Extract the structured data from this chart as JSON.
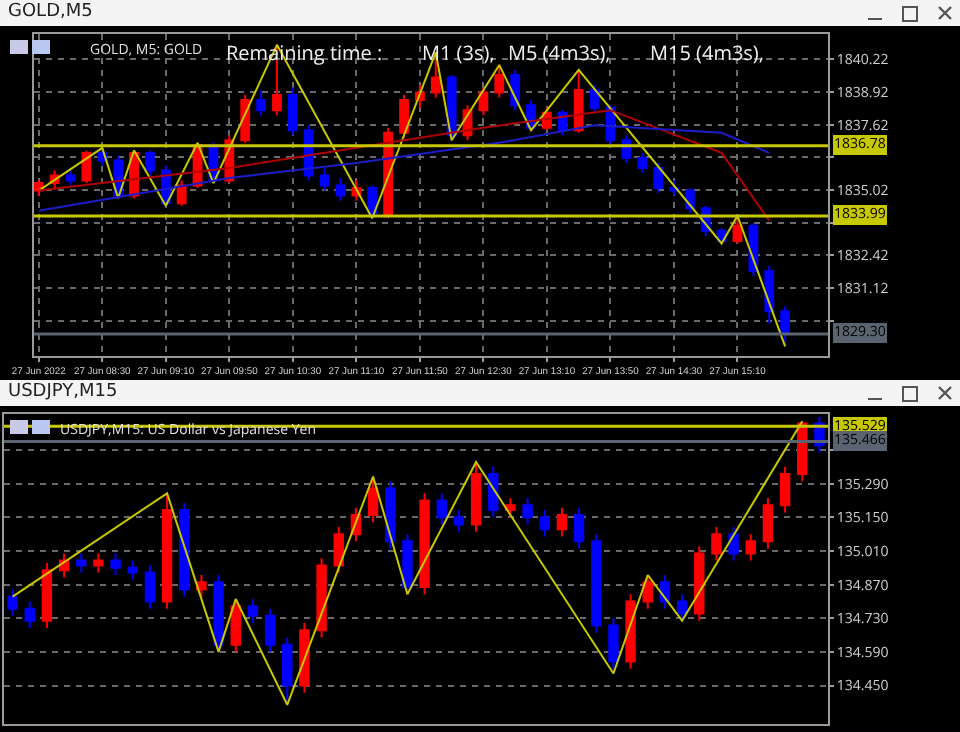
{
  "chart_data": [
    {
      "type": "candlestick",
      "title": "GOLD,M5",
      "subtitle": "GOLD, M5: GOLD",
      "annotations": [
        "Remaining time :",
        "M1 (3s),",
        "M5 (4m3s),",
        "M15 (4m3s),"
      ],
      "x": [
        "2022-06-27T07:50",
        "2022-06-27T08:00",
        "2022-06-27T08:10",
        "2022-06-27T08:20",
        "2022-06-27T08:30",
        "2022-06-27T08:40",
        "2022-06-27T08:50",
        "2022-06-27T09:00",
        "2022-06-27T09:10",
        "2022-06-27T09:20",
        "2022-06-27T09:30",
        "2022-06-27T09:40",
        "2022-06-27T09:50",
        "2022-06-27T10:00",
        "2022-06-27T10:10",
        "2022-06-27T10:20",
        "2022-06-27T10:30",
        "2022-06-27T10:40",
        "2022-06-27T10:50",
        "2022-06-27T11:00",
        "2022-06-27T11:10",
        "2022-06-27T11:20",
        "2022-06-27T11:30",
        "2022-06-27T11:40",
        "2022-06-27T11:50",
        "2022-06-27T12:00",
        "2022-06-27T12:10",
        "2022-06-27T12:20",
        "2022-06-27T12:30",
        "2022-06-27T12:40",
        "2022-06-27T12:50",
        "2022-06-27T13:00",
        "2022-06-27T13:10",
        "2022-06-27T13:20",
        "2022-06-27T13:30",
        "2022-06-27T13:40",
        "2022-06-27T13:50",
        "2022-06-27T14:00",
        "2022-06-27T14:10",
        "2022-06-27T14:20",
        "2022-06-27T14:30",
        "2022-06-27T14:40",
        "2022-06-27T14:50",
        "2022-06-27T15:00",
        "2022-06-27T15:10",
        "2022-06-27T15:20",
        "2022-06-27T15:30",
        "2022-06-27T15:40"
      ],
      "colors": [
        "#ff0000",
        "#ff0000",
        "#0000ff",
        "#ff0000",
        "#0000ff",
        "#0000ff",
        "#ff0000",
        "#0000ff",
        "#0000ff",
        "#ff0000",
        "#ff0000",
        "#0000ff",
        "#ff0000",
        "#ff0000",
        "#0000ff",
        "#ff0000",
        "#0000ff",
        "#0000ff",
        "#0000ff",
        "#0000ff",
        "#ff0000",
        "#0000ff",
        "#ff0000",
        "#ff0000",
        "#ff0000",
        "#ff0000",
        "#0000ff",
        "#ff0000",
        "#ff0000",
        "#ff0000",
        "#0000ff",
        "#0000ff",
        "#ff0000",
        "#0000ff",
        "#ff0000",
        "#0000ff",
        "#0000ff",
        "#0000ff",
        "#0000ff",
        "#0000ff",
        "#0000ff",
        "#0000ff",
        "#0000ff",
        "#0000ff",
        "#ff0000",
        "#0000ff",
        "#0000ff",
        "#0000ff"
      ],
      "ohlc": [
        [
          1835.0,
          1835.4,
          1834.8,
          1835.3
        ],
        [
          1835.3,
          1835.8,
          1835.1,
          1835.6
        ],
        [
          1835.6,
          1835.9,
          1835.2,
          1835.4
        ],
        [
          1835.4,
          1836.6,
          1835.3,
          1836.5
        ],
        [
          1836.5,
          1836.7,
          1836.0,
          1836.2
        ],
        [
          1836.2,
          1836.4,
          1834.7,
          1834.8
        ],
        [
          1834.8,
          1836.6,
          1834.7,
          1836.5
        ],
        [
          1836.5,
          1836.6,
          1835.6,
          1835.8
        ],
        [
          1835.8,
          1836.0,
          1834.4,
          1834.5
        ],
        [
          1834.5,
          1835.4,
          1834.4,
          1835.2
        ],
        [
          1835.2,
          1836.9,
          1835.1,
          1836.8
        ],
        [
          1836.8,
          1836.9,
          1835.3,
          1835.4
        ],
        [
          1835.4,
          1837.2,
          1835.3,
          1837.0
        ],
        [
          1837.0,
          1838.8,
          1836.9,
          1838.6
        ],
        [
          1838.6,
          1839.0,
          1838.0,
          1838.2
        ],
        [
          1838.2,
          1840.8,
          1838.0,
          1838.8
        ],
        [
          1838.8,
          1839.1,
          1837.2,
          1837.4
        ],
        [
          1837.4,
          1837.6,
          1835.4,
          1835.6
        ],
        [
          1835.6,
          1835.9,
          1835.0,
          1835.2
        ],
        [
          1835.2,
          1835.5,
          1834.6,
          1834.8
        ],
        [
          1834.8,
          1835.4,
          1834.6,
          1835.1
        ],
        [
          1835.1,
          1835.2,
          1833.9,
          1834.0
        ],
        [
          1834.0,
          1837.5,
          1833.9,
          1837.3
        ],
        [
          1837.3,
          1838.8,
          1837.1,
          1838.6
        ],
        [
          1838.6,
          1839.2,
          1838.3,
          1838.9
        ],
        [
          1838.9,
          1840.5,
          1838.7,
          1839.5
        ],
        [
          1839.5,
          1839.6,
          1837.0,
          1837.2
        ],
        [
          1837.2,
          1838.4,
          1837.0,
          1838.2
        ],
        [
          1838.2,
          1839.1,
          1838.0,
          1838.9
        ],
        [
          1838.9,
          1840.0,
          1838.7,
          1839.6
        ],
        [
          1839.6,
          1839.8,
          1838.2,
          1838.4
        ],
        [
          1838.4,
          1838.6,
          1837.4,
          1837.5
        ],
        [
          1837.5,
          1838.3,
          1837.4,
          1838.1
        ],
        [
          1838.1,
          1838.2,
          1837.2,
          1837.4
        ],
        [
          1837.4,
          1839.8,
          1837.3,
          1839.0
        ],
        [
          1839.0,
          1839.2,
          1838.1,
          1838.3
        ],
        [
          1838.3,
          1838.4,
          1836.8,
          1837.0
        ],
        [
          1837.0,
          1837.2,
          1836.1,
          1836.3
        ],
        [
          1836.3,
          1836.5,
          1835.7,
          1835.9
        ],
        [
          1835.9,
          1836.1,
          1834.9,
          1835.1
        ],
        [
          1835.1,
          1835.4,
          1834.8,
          1835.0
        ],
        [
          1835.0,
          1835.1,
          1834.1,
          1834.3
        ],
        [
          1834.3,
          1834.4,
          1833.2,
          1833.4
        ],
        [
          1833.4,
          1833.5,
          1832.9,
          1833.0
        ],
        [
          1833.0,
          1834.0,
          1832.9,
          1833.6
        ],
        [
          1833.6,
          1833.7,
          1831.6,
          1831.8
        ],
        [
          1831.8,
          1832.0,
          1829.7,
          1830.2
        ],
        [
          1830.2,
          1830.4,
          1828.8,
          1829.3
        ]
      ],
      "series": [
        {
          "type": "line",
          "color": "#c8c800",
          "x": [
            "2022-06-27T07:50",
            "2022-06-27T08:30",
            "2022-06-27T08:40",
            "2022-06-27T08:50",
            "2022-06-27T09:10",
            "2022-06-27T09:30",
            "2022-06-27T09:40",
            "2022-06-27T10:20",
            "2022-06-27T11:20",
            "2022-06-27T12:00",
            "2022-06-27T12:10",
            "2022-06-27T12:40",
            "2022-06-27T13:00",
            "2022-06-27T13:30",
            "2022-06-27T15:00",
            "2022-06-27T15:10",
            "2022-06-27T15:40"
          ],
          "values": [
            1835.0,
            1836.7,
            1834.7,
            1836.6,
            1834.4,
            1836.9,
            1835.3,
            1840.8,
            1833.9,
            1840.5,
            1837.0,
            1840.0,
            1837.4,
            1839.8,
            1832.9,
            1834.0,
            1828.8
          ]
        },
        {
          "type": "line",
          "color": "#b00000",
          "x": [
            "2022-06-27T07:50",
            "2022-06-27T09:50",
            "2022-06-27T11:10",
            "2022-06-27T12:30",
            "2022-06-27T13:50",
            "2022-06-27T15:00",
            "2022-06-27T15:30"
          ],
          "values": [
            1835.0,
            1835.9,
            1836.7,
            1837.5,
            1838.2,
            1836.5,
            1833.8
          ]
        },
        {
          "type": "line",
          "color": "#1c1cc8",
          "x": [
            "2022-06-27T07:50",
            "2022-06-27T09:50",
            "2022-06-27T11:10",
            "2022-06-27T12:40",
            "2022-06-27T13:40",
            "2022-06-27T15:00",
            "2022-06-27T15:30"
          ],
          "values": [
            1834.2,
            1835.5,
            1836.1,
            1836.9,
            1837.6,
            1837.3,
            1836.5
          ]
        }
      ],
      "xlim": [
        "2022-06-27T07:47",
        "2022-06-27T16:07"
      ],
      "xticks": [
        {
          "value": "2022-06-27T07:50",
          "label": "27 Jun 2022"
        },
        {
          "value": "2022-06-27T08:30",
          "label": "27 Jun 08:30"
        },
        {
          "value": "2022-06-27T09:10",
          "label": "27 Jun 09:10"
        },
        {
          "value": "2022-06-27T09:50",
          "label": "27 Jun 09:50"
        },
        {
          "value": "2022-06-27T10:30",
          "label": "27 Jun 10:30"
        },
        {
          "value": "2022-06-27T11:10",
          "label": "27 Jun 11:10"
        },
        {
          "value": "2022-06-27T11:50",
          "label": "27 Jun 11:50"
        },
        {
          "value": "2022-06-27T12:30",
          "label": "27 Jun 12:30"
        },
        {
          "value": "2022-06-27T13:10",
          "label": "27 Jun 13:10"
        },
        {
          "value": "2022-06-27T13:50",
          "label": "27 Jun 13:50"
        },
        {
          "value": "2022-06-27T14:30",
          "label": "27 Jun 14:30"
        },
        {
          "value": "2022-06-27T15:10",
          "label": "27 Jun 15:10"
        }
      ],
      "ylim": [
        1828.42,
        1841.23
      ],
      "yticks": [
        1840.22,
        1838.92,
        1837.62,
        {
          "value": 1836.32,
          "label": null
        },
        1835.02,
        {
          "value": 1833.72,
          "label": null
        },
        1832.42,
        1831.12,
        {
          "value": 1829.82,
          "label": null
        }
      ],
      "grid": true,
      "marker": "none",
      "line_style": "solid",
      "ref_lines": [
        {
          "axis": "y",
          "value": 1836.78,
          "label": "1836.78",
          "color": "#c8c800"
        },
        {
          "axis": "y",
          "value": 1833.99,
          "label": "1833.99",
          "color": "#c8c800"
        },
        {
          "axis": "y",
          "value": 1829.3,
          "label": "1829.30",
          "color": "#5a6470"
        }
      ]
    },
    {
      "type": "candlestick",
      "title": "USDJPY,M15",
      "subtitle": "USDJPY,M15: US Dollar vs Japanese Yen",
      "categories": [
        null,
        null,
        null,
        null,
        null,
        null,
        null,
        null,
        null,
        null,
        null,
        null,
        null,
        null,
        null,
        null,
        null,
        null,
        null,
        null,
        null,
        null,
        null,
        null,
        null,
        null,
        null,
        null,
        null,
        null,
        null,
        null,
        null,
        null,
        null,
        null,
        null,
        null,
        null,
        null,
        null,
        null,
        null,
        null,
        null,
        null,
        null,
        null
      ],
      "colors": [
        "#0000ff",
        "#0000ff",
        "#ff0000",
        "#ff0000",
        "#0000ff",
        "#ff0000",
        "#0000ff",
        "#0000ff",
        "#0000ff",
        "#ff0000",
        "#0000ff",
        "#ff0000",
        "#0000ff",
        "#ff0000",
        "#0000ff",
        "#0000ff",
        "#0000ff",
        "#ff0000",
        "#ff0000",
        "#ff0000",
        "#ff0000",
        "#ff0000",
        "#0000ff",
        "#0000ff",
        "#ff0000",
        "#0000ff",
        "#0000ff",
        "#ff0000",
        "#0000ff",
        "#ff0000",
        "#0000ff",
        "#0000ff",
        "#ff0000",
        "#0000ff",
        "#0000ff",
        "#0000ff",
        "#ff0000",
        "#ff0000",
        "#0000ff",
        "#0000ff",
        "#ff0000",
        "#ff0000",
        "#0000ff",
        "#ff0000",
        "#ff0000",
        "#ff0000",
        "#ff0000",
        "#0000ff"
      ],
      "ohlc": [
        [
          134.82,
          134.85,
          134.74,
          134.77
        ],
        [
          134.77,
          134.8,
          134.69,
          134.72
        ],
        [
          134.72,
          134.96,
          134.69,
          134.93
        ],
        [
          134.93,
          135.0,
          134.9,
          134.97
        ],
        [
          134.97,
          135.0,
          134.92,
          134.95
        ],
        [
          134.95,
          135.0,
          134.92,
          134.97
        ],
        [
          134.97,
          135.0,
          134.91,
          134.94
        ],
        [
          134.94,
          134.97,
          134.89,
          134.92
        ],
        [
          134.92,
          134.95,
          134.77,
          134.8
        ],
        [
          134.8,
          135.25,
          134.77,
          135.18
        ],
        [
          135.18,
          135.21,
          134.82,
          134.85
        ],
        [
          134.85,
          134.91,
          134.82,
          134.88
        ],
        [
          134.88,
          134.91,
          134.59,
          134.62
        ],
        [
          134.62,
          134.81,
          134.59,
          134.78
        ],
        [
          134.78,
          134.81,
          134.71,
          134.74
        ],
        [
          134.74,
          134.77,
          134.59,
          134.62
        ],
        [
          134.62,
          134.65,
          134.37,
          134.45
        ],
        [
          134.45,
          134.71,
          134.42,
          134.68
        ],
        [
          134.68,
          134.98,
          134.65,
          134.95
        ],
        [
          134.95,
          135.11,
          134.92,
          135.08
        ],
        [
          135.08,
          135.19,
          135.05,
          135.16
        ],
        [
          135.16,
          135.32,
          135.13,
          135.27
        ],
        [
          135.27,
          135.3,
          135.02,
          135.05
        ],
        [
          135.05,
          135.08,
          134.83,
          134.86
        ],
        [
          134.86,
          135.25,
          134.83,
          135.22
        ],
        [
          135.22,
          135.25,
          135.12,
          135.15
        ],
        [
          135.15,
          135.18,
          135.09,
          135.12
        ],
        [
          135.12,
          135.38,
          135.09,
          135.33
        ],
        [
          135.33,
          135.36,
          135.15,
          135.18
        ],
        [
          135.18,
          135.23,
          135.15,
          135.2
        ],
        [
          135.2,
          135.23,
          135.12,
          135.15
        ],
        [
          135.15,
          135.18,
          135.07,
          135.1
        ],
        [
          135.1,
          135.19,
          135.07,
          135.16
        ],
        [
          135.16,
          135.19,
          135.02,
          135.05
        ],
        [
          135.05,
          135.08,
          134.67,
          134.7
        ],
        [
          134.7,
          134.73,
          134.5,
          134.55
        ],
        [
          134.55,
          134.83,
          134.52,
          134.8
        ],
        [
          134.8,
          134.91,
          134.77,
          134.88
        ],
        [
          134.88,
          134.91,
          134.77,
          134.8
        ],
        [
          134.8,
          134.83,
          134.72,
          134.75
        ],
        [
          134.75,
          135.03,
          134.72,
          135.0
        ],
        [
          135.0,
          135.11,
          134.97,
          135.08
        ],
        [
          135.08,
          135.11,
          134.97,
          135.0
        ],
        [
          135.0,
          135.08,
          134.97,
          135.05
        ],
        [
          135.05,
          135.23,
          135.02,
          135.2
        ],
        [
          135.2,
          135.36,
          135.17,
          135.33
        ],
        [
          135.33,
          135.55,
          135.3,
          135.54
        ],
        [
          135.54,
          135.57,
          135.42,
          135.45
        ]
      ],
      "series": [
        {
          "type": "line",
          "color": "#c8c800",
          "values": [
            134.82,
            null,
            null,
            null,
            null,
            null,
            null,
            null,
            null,
            135.25,
            null,
            null,
            134.59,
            134.81,
            null,
            null,
            134.37,
            null,
            null,
            null,
            null,
            135.32,
            null,
            134.83,
            null,
            null,
            null,
            135.38,
            null,
            null,
            null,
            null,
            null,
            null,
            null,
            134.5,
            null,
            134.91,
            null,
            134.72,
            null,
            null,
            null,
            null,
            null,
            null,
            135.55,
            null
          ]
        }
      ],
      "ylim": [
        134.29,
        135.58
      ],
      "yticks": [
        {
          "value": 135.43,
          "label": null
        },
        {
          "value": 135.29,
          "label": "135.290"
        },
        {
          "value": 135.15,
          "label": "135.150"
        },
        {
          "value": 135.01,
          "label": "135.010"
        },
        {
          "value": 134.87,
          "label": "134.870"
        },
        {
          "value": 134.73,
          "label": "134.730"
        },
        {
          "value": 134.59,
          "label": "134.590"
        },
        {
          "value": 134.45,
          "label": "134.450"
        }
      ],
      "grid": true,
      "marker": "none",
      "line_style": "solid",
      "tick_labels": "y",
      "ref_lines": [
        {
          "axis": "y",
          "value": 135.529,
          "label": "135.529",
          "color": "#c8c800"
        },
        {
          "axis": "y",
          "value": 135.466,
          "label": "135.466",
          "color": "#5a6470"
        }
      ]
    }
  ]
}
